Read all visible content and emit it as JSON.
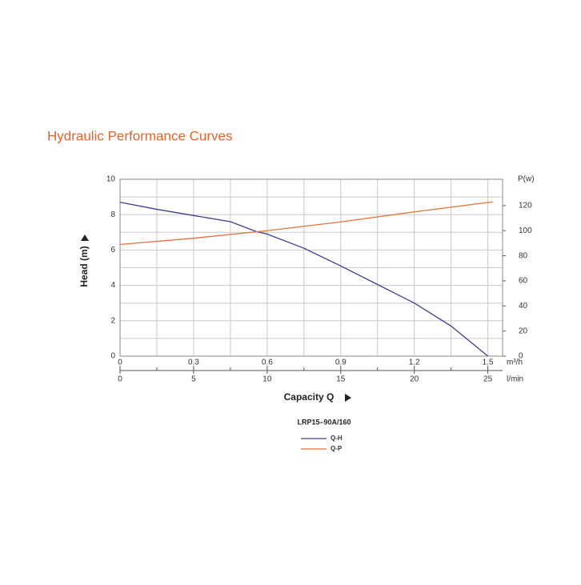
{
  "chart_data": {
    "type": "line",
    "title": "Hydraulic Performance Curves",
    "xlabel": "Capacity Q",
    "ylabel": "Head (m)",
    "y2label": "P(w)",
    "xunit": "m³/h",
    "x2unit": "l/min",
    "legend_title": "LRP15–90A/160",
    "xlim": [
      0,
      1.56
    ],
    "xticks": [
      0,
      0.3,
      0.6,
      0.9,
      1.2,
      1.5
    ],
    "xminor_ticks": [
      0.15,
      0.45,
      0.75,
      1.05,
      1.35
    ],
    "x2lim": [
      0,
      26
    ],
    "x2ticks": [
      0,
      5,
      10,
      15,
      20,
      25
    ],
    "ylim": [
      0,
      10
    ],
    "yticks": [
      0,
      2,
      4,
      6,
      8,
      10
    ],
    "yminor_ticks": [
      1,
      3,
      5,
      7,
      9
    ],
    "y2lim": [
      0,
      141
    ],
    "y2ticks": [
      0,
      20,
      40,
      60,
      80,
      100,
      120
    ],
    "grid": true,
    "series": [
      {
        "name": "Q-H",
        "color": "#3d3f8c",
        "x": [
          0,
          0.15,
          0.3,
          0.45,
          0.555,
          0.6,
          0.75,
          0.9,
          1.05,
          1.2,
          1.35,
          1.5
        ],
        "values": [
          8.7,
          8.3,
          7.95,
          7.6,
          7.05,
          6.9,
          6.1,
          5.1,
          4.05,
          3.0,
          1.7,
          0
        ]
      },
      {
        "name": "Q-P",
        "color": "#e0743a",
        "axis": "y2",
        "x": [
          0,
          0.3,
          0.6,
          0.9,
          1.2,
          1.52
        ],
        "values": [
          89,
          94,
          100,
          107,
          115,
          123
        ]
      }
    ]
  }
}
